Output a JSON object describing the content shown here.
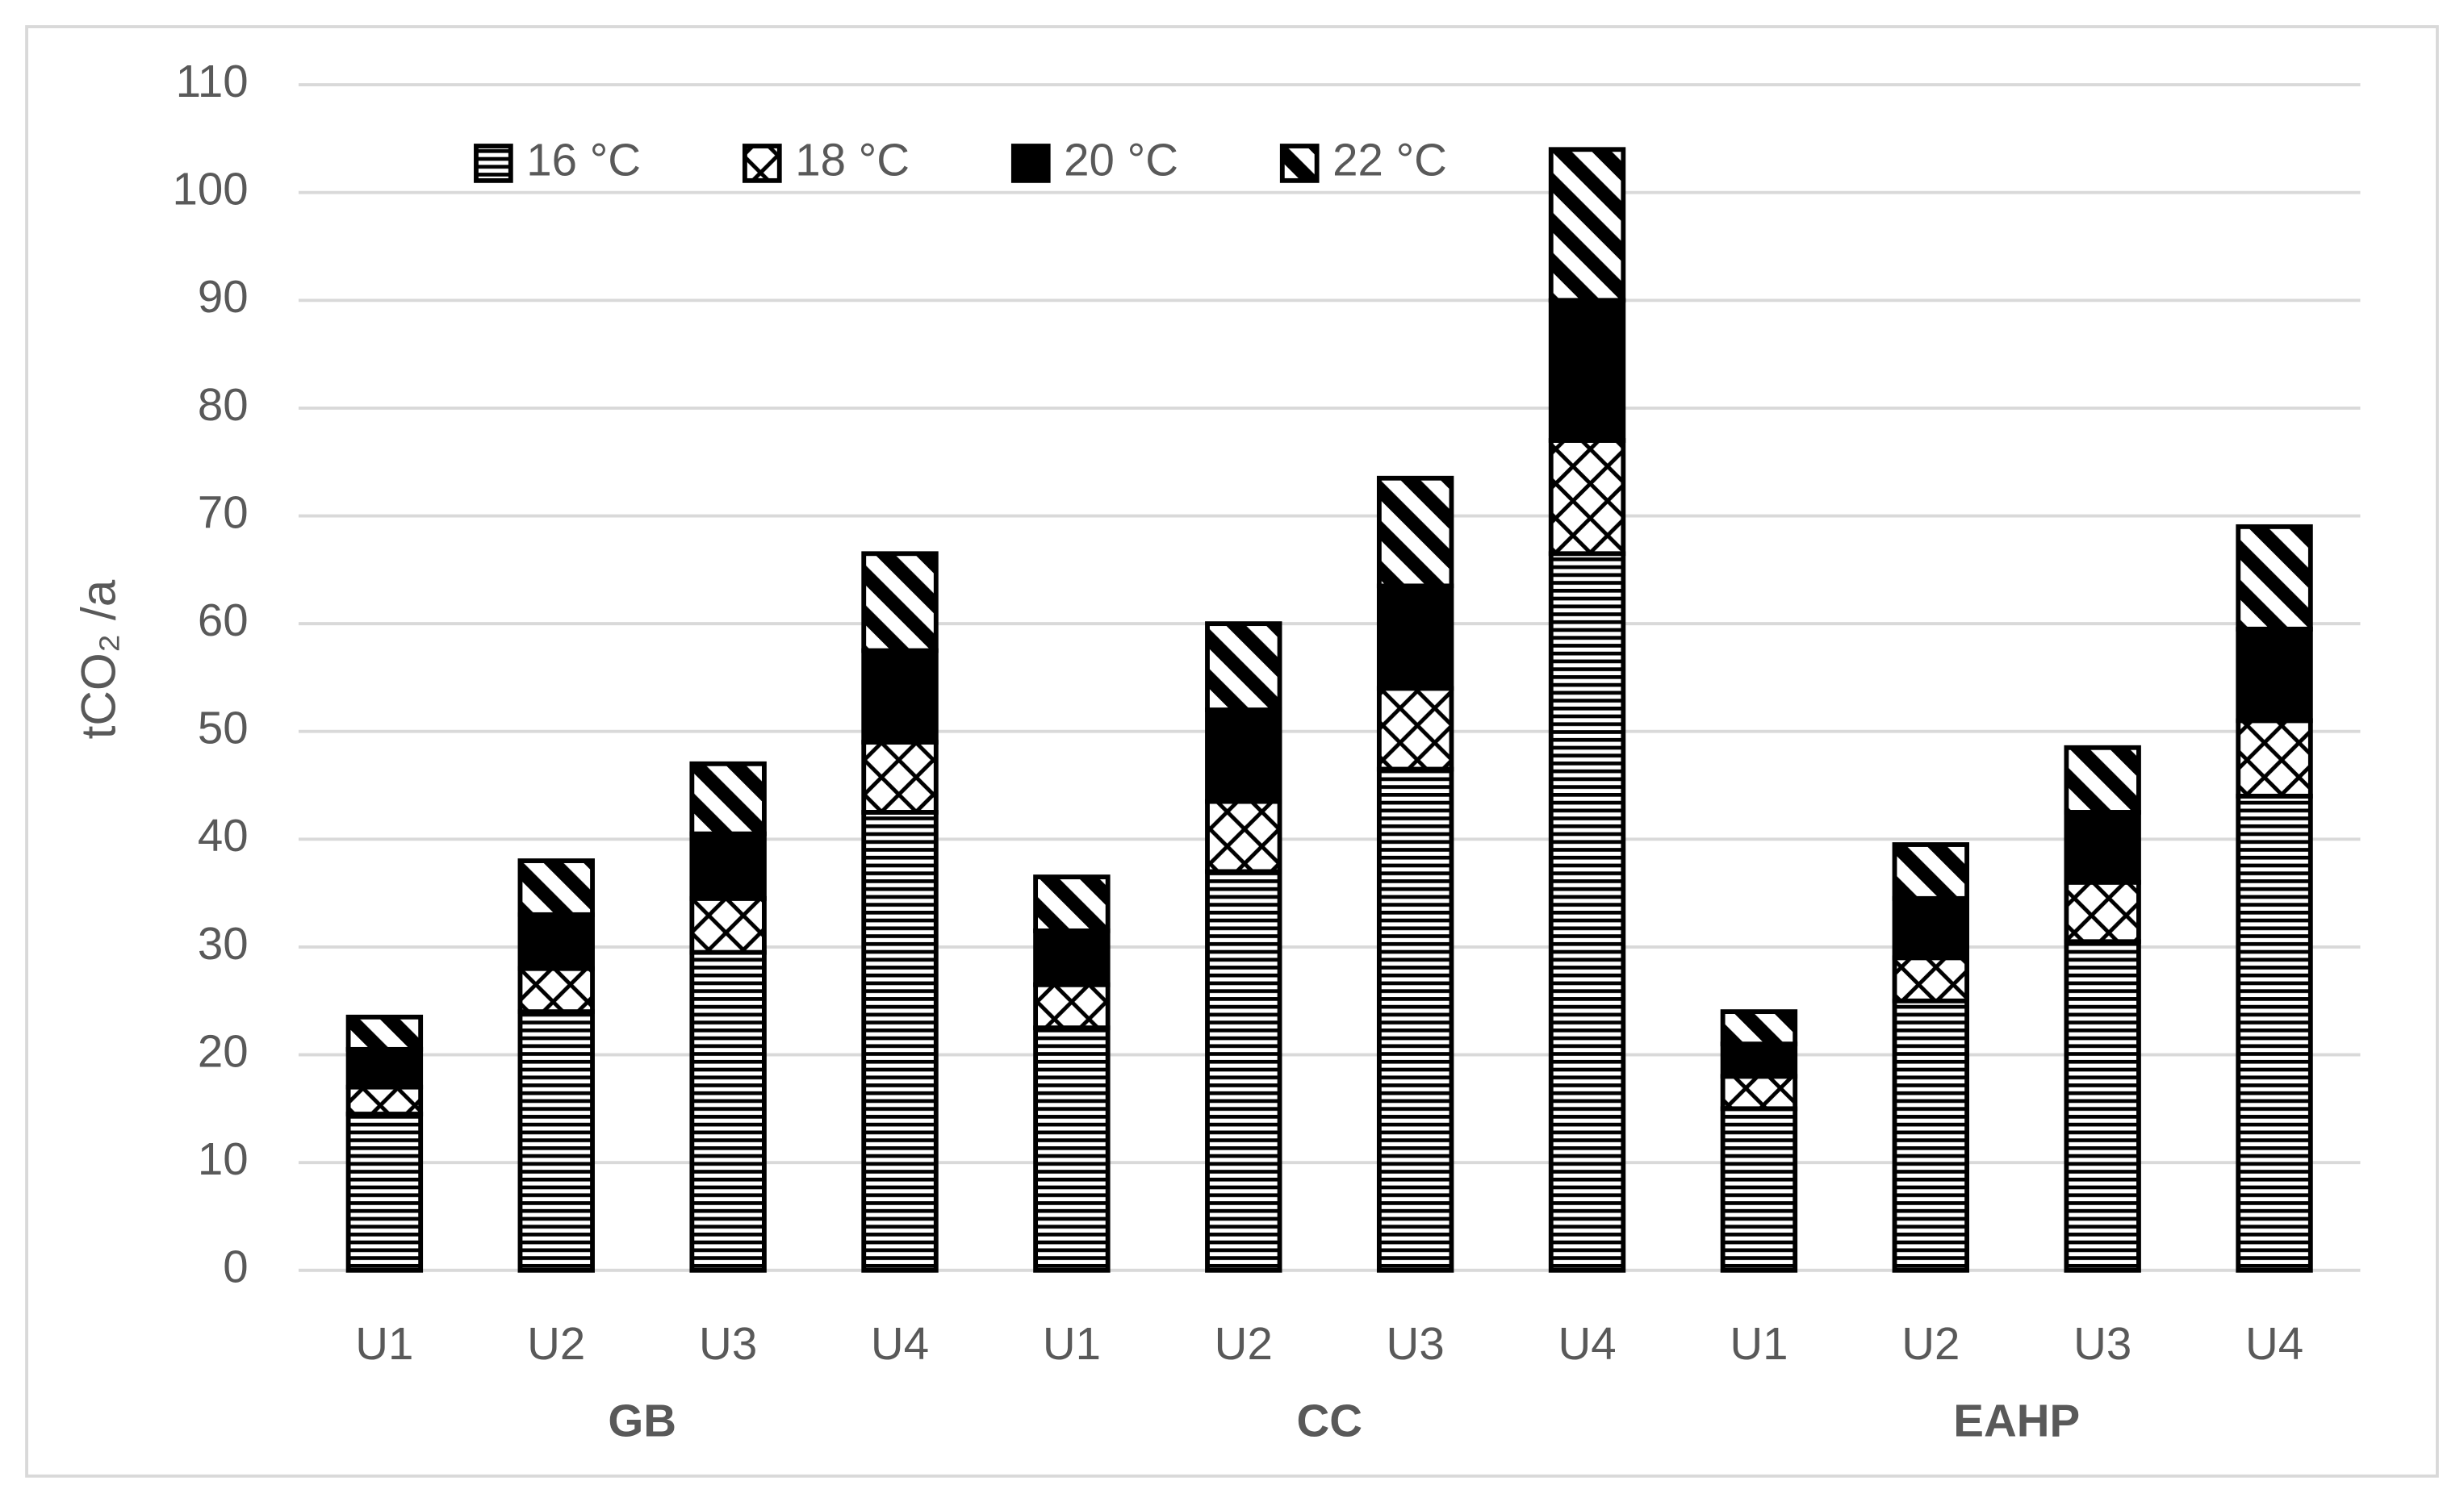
{
  "chart_data": {
    "type": "stacked_bar",
    "y_label": "tCO₂ /a",
    "categories": [
      "U1",
      "U2",
      "U3",
      "U4",
      "U1",
      "U2",
      "U3",
      "U4",
      "U1",
      "U2",
      "U3",
      "U4"
    ],
    "groups": [
      "GB",
      "CC",
      "EAHP"
    ],
    "series": [
      {
        "name": "16 °C",
        "color": "#000000",
        "pattern": "hlines",
        "values": [
          14.5,
          24,
          29.5,
          42.5,
          22.5,
          37,
          46.5,
          66.5,
          15,
          25,
          30.5,
          44
        ]
      },
      {
        "name": "18 °C",
        "color": "#000000",
        "pattern": "crosshatch",
        "values": [
          2.5,
          4,
          5,
          6.5,
          4,
          6.5,
          7.5,
          10.5,
          3,
          4,
          5.5,
          7
        ]
      },
      {
        "name": "20 °C",
        "color": "#000000",
        "pattern": "solid",
        "values": [
          3.5,
          5,
          6,
          8.5,
          5,
          8.5,
          9.5,
          13,
          3,
          5.5,
          6.5,
          8.5
        ]
      },
      {
        "name": "22 °C",
        "color": "#000000",
        "pattern": "diagonal",
        "values": [
          3,
          5,
          6.5,
          9,
          5,
          8,
          10,
          14,
          3,
          5,
          6,
          9.5
        ]
      }
    ],
    "ylim": [
      0,
      110
    ],
    "yticks": [
      0,
      10,
      20,
      30,
      40,
      50,
      60,
      70,
      80,
      90,
      100,
      110
    ],
    "grid": true,
    "legend": "top"
  }
}
